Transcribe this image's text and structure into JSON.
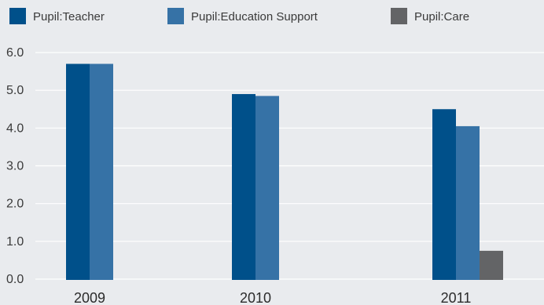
{
  "chart_data": {
    "type": "bar",
    "categories": [
      "2009",
      "2010",
      "2011"
    ],
    "series": [
      {
        "name": "Pupil:Teacher",
        "color": "#00508a",
        "values": [
          5.7,
          4.9,
          4.5
        ]
      },
      {
        "name": "Pupil:Education Support",
        "color": "#3672a6",
        "values": [
          5.7,
          4.85,
          4.05
        ]
      },
      {
        "name": "Pupil:Care",
        "color": "#636466",
        "values": [
          null,
          null,
          0.75
        ]
      }
    ],
    "ylim": [
      0,
      6
    ],
    "yticks": [
      "0.0",
      "1.0",
      "2.0",
      "3.0",
      "4.0",
      "5.0",
      "6.0"
    ],
    "grid": true,
    "legend_position": "top",
    "title": "",
    "xlabel": "",
    "ylabel": ""
  }
}
